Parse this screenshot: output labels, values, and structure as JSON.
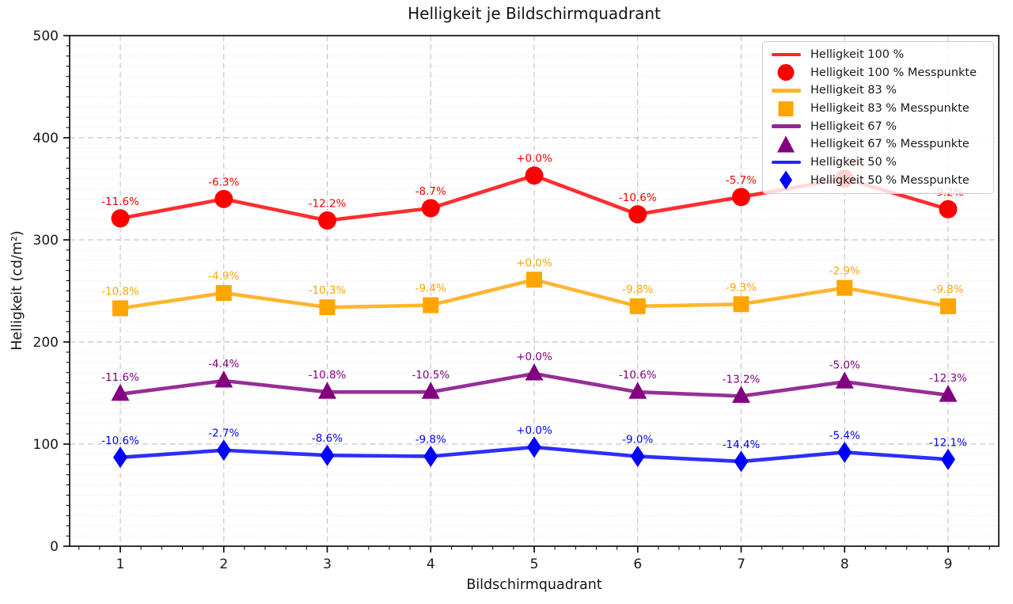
{
  "figure": {
    "background": "#ffffff"
  },
  "chart_data": {
    "type": "line",
    "title": "Helligkeit je Bildschirmquadrant",
    "xlabel": "Bildschirmquadrant",
    "ylabel": "Helligkeit (cd/m²)",
    "x": [
      1,
      2,
      3,
      4,
      5,
      6,
      7,
      8,
      9
    ],
    "xtick_labels": [
      "1",
      "2",
      "3",
      "4",
      "5",
      "6",
      "7",
      "8",
      "9"
    ],
    "ylim": [
      0,
      500
    ],
    "yticks": [
      0,
      100,
      200,
      300,
      400,
      500
    ],
    "grid": true,
    "legend_position": "upper right",
    "series": [
      {
        "name": "Helligkeit 100 %",
        "marker_name": "Helligkeit 100 % Messpunkte",
        "color": "#ff0000",
        "marker": "circle",
        "values": [
          321,
          340,
          319,
          331,
          363,
          325,
          342,
          360,
          330
        ],
        "point_labels": [
          "-11.6%",
          "-6.3%",
          "-12.2%",
          "-8.7%",
          "+0.0%",
          "-10.6%",
          "-5.7%",
          "-0.8%",
          "-9.2%"
        ]
      },
      {
        "name": "Helligkeit 83 %",
        "marker_name": "Helligkeit 83 % Messpunkte",
        "color": "#ffa500",
        "marker": "square",
        "values": [
          233,
          248,
          234,
          236,
          261,
          235,
          237,
          253,
          235
        ],
        "point_labels": [
          "-10.8%",
          "-4.9%",
          "-10.3%",
          "-9.4%",
          "+0.0%",
          "-9.8%",
          "-9.3%",
          "-2.9%",
          "-9.8%"
        ]
      },
      {
        "name": "Helligkeit 67 %",
        "marker_name": "Helligkeit 67 % Messpunkte",
        "color": "#800080",
        "marker": "triangle",
        "values": [
          149,
          162,
          151,
          151,
          169,
          151,
          147,
          161,
          148
        ],
        "point_labels": [
          "-11.6%",
          "-4.4%",
          "-10.8%",
          "-10.5%",
          "+0.0%",
          "-10.6%",
          "-13.2%",
          "-5.0%",
          "-12.3%"
        ]
      },
      {
        "name": "Helligkeit 50 %",
        "marker_name": "Helligkeit 50 % Messpunkte",
        "color": "#0000ff",
        "marker": "diamond",
        "values": [
          87,
          94,
          89,
          88,
          97,
          88,
          83,
          92,
          85
        ],
        "point_labels": [
          "-10.6%",
          "-2.7%",
          "-8.6%",
          "-9.8%",
          "+0.0%",
          "-9.0%",
          "-14.4%",
          "-5.4%",
          "-12.1%"
        ]
      }
    ],
    "legend_entries": [
      "Helligkeit 100 %",
      "Helligkeit 100 % Messpunkte",
      "Helligkeit 83 %",
      "Helligkeit 83 % Messpunkte",
      "Helligkeit 67 %",
      "Helligkeit 67 % Messpunkte",
      "Helligkeit 50 %",
      "Helligkeit 50 % Messpunkte"
    ]
  }
}
